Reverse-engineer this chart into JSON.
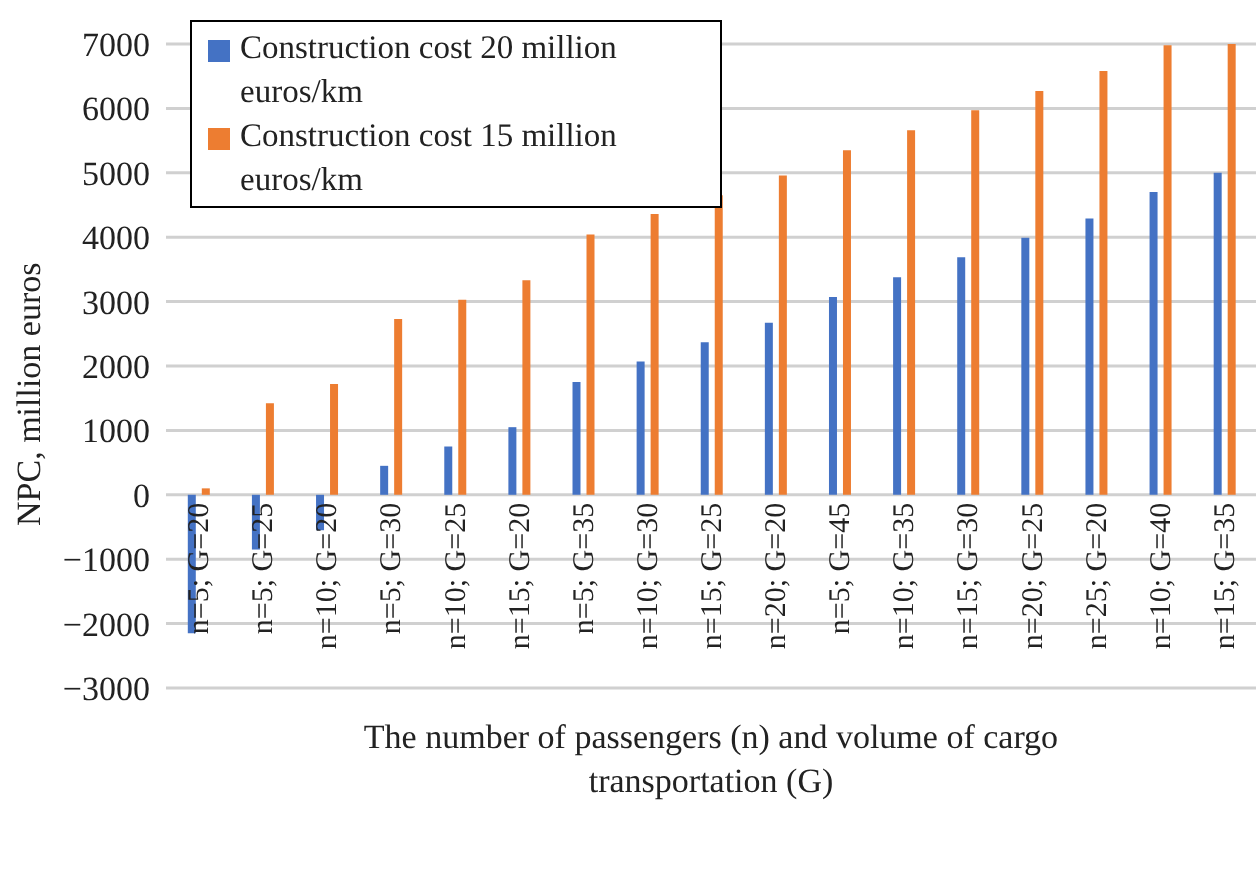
{
  "chart_data": {
    "type": "bar",
    "xlabel": "The number of passengers (n) and volume of cargo transportation (G)",
    "ylabel": "NPC, million euros",
    "categories": [
      "n=5; G=20",
      "n=5; G=25",
      "n=10; G=20",
      "n=5; G=30",
      "n=10; G=25",
      "n=15; G=20",
      "n=5; G=35",
      "n=10; G=30",
      "n=15; G=25",
      "n=20; G=20",
      "n=5; G=45",
      "n=10; G=35",
      "n=15; G=30",
      "n=20; G=25",
      "n=25; G=20",
      "n=10; G=40",
      "n=15; G=35"
    ],
    "series": [
      {
        "name": "Construction cost 20 million euros/km",
        "color": "#4472c4",
        "values": [
          -2150,
          -850,
          -550,
          450,
          750,
          1050,
          1750,
          2070,
          2370,
          2670,
          3070,
          3380,
          3690,
          3990,
          4290,
          4700,
          5000
        ]
      },
      {
        "name": "Construction cost 15 million euros/km",
        "color": "#ed7d31",
        "values": [
          100,
          1420,
          1720,
          2730,
          3030,
          3330,
          4040,
          4360,
          4650,
          4960,
          5350,
          5660,
          5970,
          6270,
          6580,
          6980,
          7000
        ]
      }
    ],
    "ylim": [
      -3000,
      7000
    ],
    "yticks": [
      {
        "value": -3000,
        "label": "−3000"
      },
      {
        "value": -2000,
        "label": "−2000"
      },
      {
        "value": -1000,
        "label": "−1000"
      },
      0,
      1000,
      2000,
      3000,
      4000,
      5000,
      6000,
      7000
    ],
    "grid": "y",
    "legend": "top left"
  }
}
